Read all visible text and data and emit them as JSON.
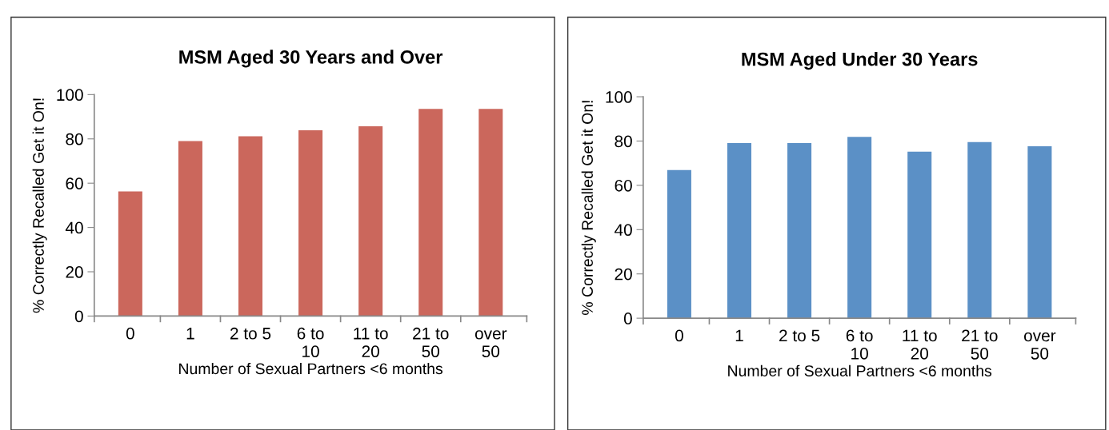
{
  "chart_data": [
    {
      "type": "bar",
      "title": "MSM Aged 30 Years and Over",
      "xlabel": "Number of Sexual Partners <6 months",
      "ylabel": "% Correctly Recalled Get it On!",
      "categories": [
        "0",
        "1",
        "2 to 5",
        "6 to 10",
        "11 to 20",
        "21 to 50",
        "over 50"
      ],
      "series": [
        {
          "color": "#cb675c",
          "values": [
            56.3,
            79.0,
            81.2,
            83.9,
            85.7,
            93.5,
            93.5
          ]
        }
      ],
      "ylim": [
        0,
        100
      ],
      "yticks": [
        0,
        20,
        40,
        60,
        80,
        100
      ],
      "grid": false
    },
    {
      "type": "bar",
      "title": "MSM Aged Under 30 Years",
      "xlabel": "Number of Sexual Partners <6 months",
      "ylabel": "% Correctly Recalled Get it On!",
      "categories": [
        "0",
        "1",
        "2 to 5",
        "6 to 10",
        "11 to 20",
        "21 to 50",
        "over 50"
      ],
      "series": [
        {
          "color": "#5b90c6",
          "values": [
            66.9,
            79.1,
            79.1,
            81.9,
            75.2,
            79.5,
            77.6
          ]
        }
      ],
      "ylim": [
        0,
        100
      ],
      "yticks": [
        0,
        20,
        40,
        60,
        80,
        100
      ],
      "grid": false
    }
  ]
}
